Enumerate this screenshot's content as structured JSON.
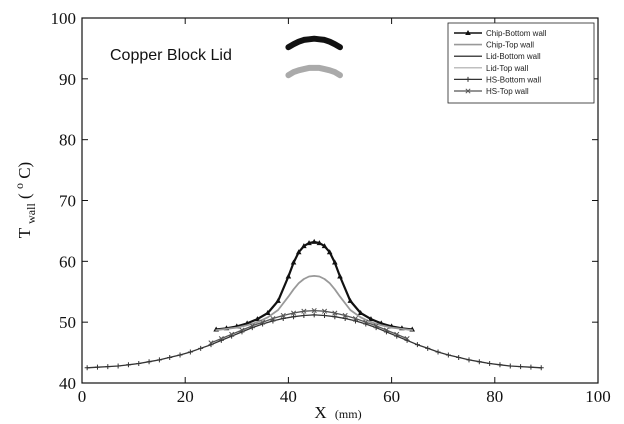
{
  "chart_data": {
    "type": "line",
    "xlabel": "X",
    "xlabel_unit": "(mm)",
    "ylabel_main": "T",
    "ylabel_sub": "wall",
    "ylabel_unit_pre": "(",
    "ylabel_unit_sup": "o",
    "ylabel_unit_post": "C)",
    "xlim": [
      0,
      100
    ],
    "ylim": [
      40,
      100
    ],
    "xticks": [
      0,
      20,
      40,
      60,
      80,
      100
    ],
    "yticks": [
      40,
      50,
      60,
      70,
      80,
      90,
      100
    ],
    "annotation": "Copper Block Lid",
    "legend_position": "top-right",
    "series": [
      {
        "name": "Chip-Bottom wall",
        "color": "#111111",
        "marker": "triangle",
        "x": [
          26,
          28,
          30,
          32,
          34,
          36,
          38,
          40,
          41,
          42,
          43,
          44,
          45,
          46,
          47,
          48,
          49,
          50,
          52,
          54,
          56,
          58,
          60,
          62,
          64
        ],
        "y": [
          48.8,
          49.0,
          49.3,
          49.8,
          50.5,
          51.5,
          53.5,
          57.5,
          59.8,
          61.5,
          62.5,
          63.0,
          63.2,
          63.0,
          62.5,
          61.5,
          59.8,
          57.5,
          53.5,
          51.5,
          50.5,
          49.8,
          49.3,
          49.0,
          48.8
        ]
      },
      {
        "name": "Chip-Top wall",
        "color": "#999999",
        "marker": "none",
        "x": [
          26,
          28,
          30,
          32,
          34,
          36,
          38,
          40,
          41,
          42,
          43,
          44,
          45,
          46,
          47,
          48,
          49,
          50,
          52,
          54,
          56,
          58,
          60,
          62,
          64
        ],
        "y": [
          48.7,
          48.9,
          49.1,
          49.5,
          50.0,
          50.8,
          52.0,
          54.2,
          55.4,
          56.4,
          57.1,
          57.5,
          57.6,
          57.5,
          57.1,
          56.4,
          55.4,
          54.2,
          52.0,
          50.8,
          50.0,
          49.5,
          49.1,
          48.9,
          48.7
        ]
      },
      {
        "name": "Lid-Bottom wall",
        "color": "#111111",
        "marker": "none",
        "x": [
          40,
          41,
          42,
          43,
          44,
          45,
          46,
          47,
          48,
          49,
          50
        ],
        "y": [
          95.2,
          95.7,
          96.1,
          96.4,
          96.5,
          96.6,
          96.5,
          96.4,
          96.1,
          95.7,
          95.2
        ]
      },
      {
        "name": "Lid-Top wall",
        "color": "#aaaaaa",
        "marker": "none",
        "x": [
          40,
          41,
          42,
          43,
          44,
          45,
          46,
          47,
          48,
          49,
          50
        ],
        "y": [
          90.6,
          91.1,
          91.4,
          91.6,
          91.8,
          91.8,
          91.8,
          91.6,
          91.4,
          91.1,
          90.6
        ]
      },
      {
        "name": "HS-Bottom wall",
        "color": "#333333",
        "marker": "plus",
        "x": [
          1,
          3,
          5,
          7,
          9,
          11,
          13,
          15,
          17,
          19,
          21,
          23,
          25,
          27,
          29,
          31,
          33,
          35,
          37,
          39,
          41,
          43,
          45,
          47,
          49,
          51,
          53,
          55,
          57,
          59,
          61,
          63,
          65,
          67,
          69,
          71,
          73,
          75,
          77,
          79,
          81,
          83,
          85,
          87,
          89
        ],
        "y": [
          42.5,
          42.6,
          42.7,
          42.8,
          43.0,
          43.2,
          43.5,
          43.8,
          44.2,
          44.6,
          45.1,
          45.7,
          46.3,
          47.0,
          47.7,
          48.4,
          49.1,
          49.7,
          50.2,
          50.6,
          50.9,
          51.1,
          51.2,
          51.1,
          50.9,
          50.6,
          50.2,
          49.7,
          49.1,
          48.4,
          47.7,
          47.0,
          46.3,
          45.7,
          45.1,
          44.6,
          44.2,
          43.8,
          43.5,
          43.2,
          43.0,
          42.8,
          42.7,
          42.6,
          42.5
        ]
      },
      {
        "name": "HS-Top wall",
        "color": "#555555",
        "marker": "cross",
        "x": [
          25,
          27,
          29,
          31,
          33,
          35,
          37,
          39,
          41,
          43,
          45,
          47,
          49,
          51,
          53,
          55,
          57,
          59,
          61,
          63
        ],
        "y": [
          46.6,
          47.3,
          48.0,
          48.7,
          49.4,
          50.0,
          50.6,
          51.1,
          51.5,
          51.8,
          51.9,
          51.8,
          51.5,
          51.1,
          50.6,
          50.0,
          49.4,
          48.7,
          48.0,
          47.3
        ]
      }
    ]
  }
}
